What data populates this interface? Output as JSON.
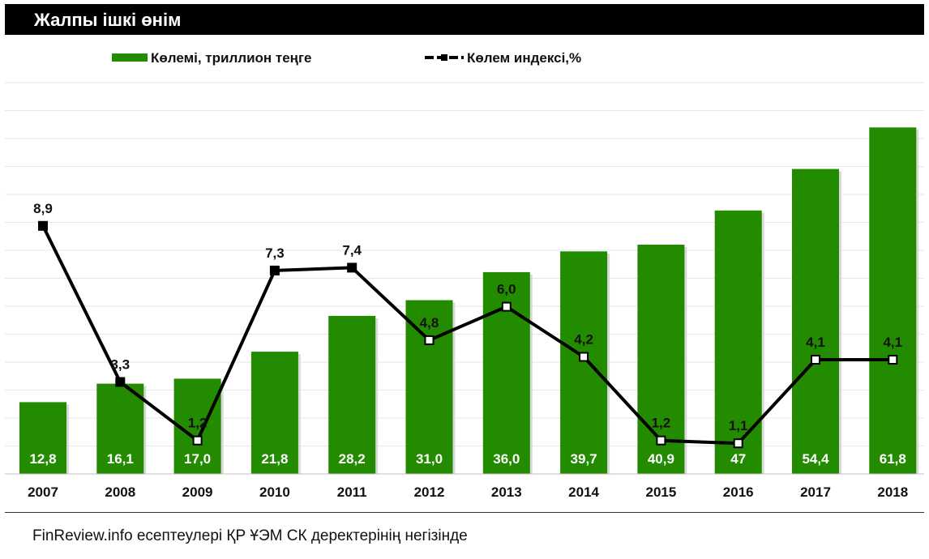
{
  "header": {
    "title": "Жалпы ішкі өнім"
  },
  "footer": {
    "source": "FinReview.info есептеулері ҚР ҰЭМ СК деректерінің негізінде"
  },
  "colors": {
    "bar": "#228B00",
    "line": "#000000",
    "title_bg": "#000000",
    "grid": "#e6e6e6"
  },
  "chart_data": {
    "type": "bar",
    "title": "Жалпы ішкі өнім",
    "categories": [
      "2007",
      "2008",
      "2009",
      "2010",
      "2011",
      "2012",
      "2013",
      "2014",
      "2015",
      "2016",
      "2017",
      "2018"
    ],
    "bar_ylim": [
      0,
      72
    ],
    "line_ylim": [
      0,
      16
    ],
    "grid": true,
    "legend_position": "top",
    "series": [
      {
        "name": "Көлемі, триллион теңге",
        "type": "bar",
        "values": [
          12.8,
          16.1,
          17.0,
          21.8,
          28.2,
          31.0,
          36.0,
          39.7,
          40.9,
          47,
          54.4,
          61.8
        ],
        "labels": [
          "12,8",
          "16,1",
          "17,0",
          "21,8",
          "28,2",
          "31,0",
          "36,0",
          "39,7",
          "40,9",
          "47",
          "54,4",
          "61,8"
        ]
      },
      {
        "name": "Көлем индексі,%",
        "type": "line",
        "values": [
          8.9,
          3.3,
          1.2,
          7.3,
          7.4,
          4.8,
          6.0,
          4.2,
          1.2,
          1.1,
          4.1,
          4.1
        ],
        "labels": [
          "8,9",
          "3,3",
          "1,2",
          "7,3",
          "7,4",
          "4,8",
          "6,0",
          "4,2",
          "1,2",
          "1,1",
          "4,1",
          "4,1"
        ]
      }
    ]
  }
}
